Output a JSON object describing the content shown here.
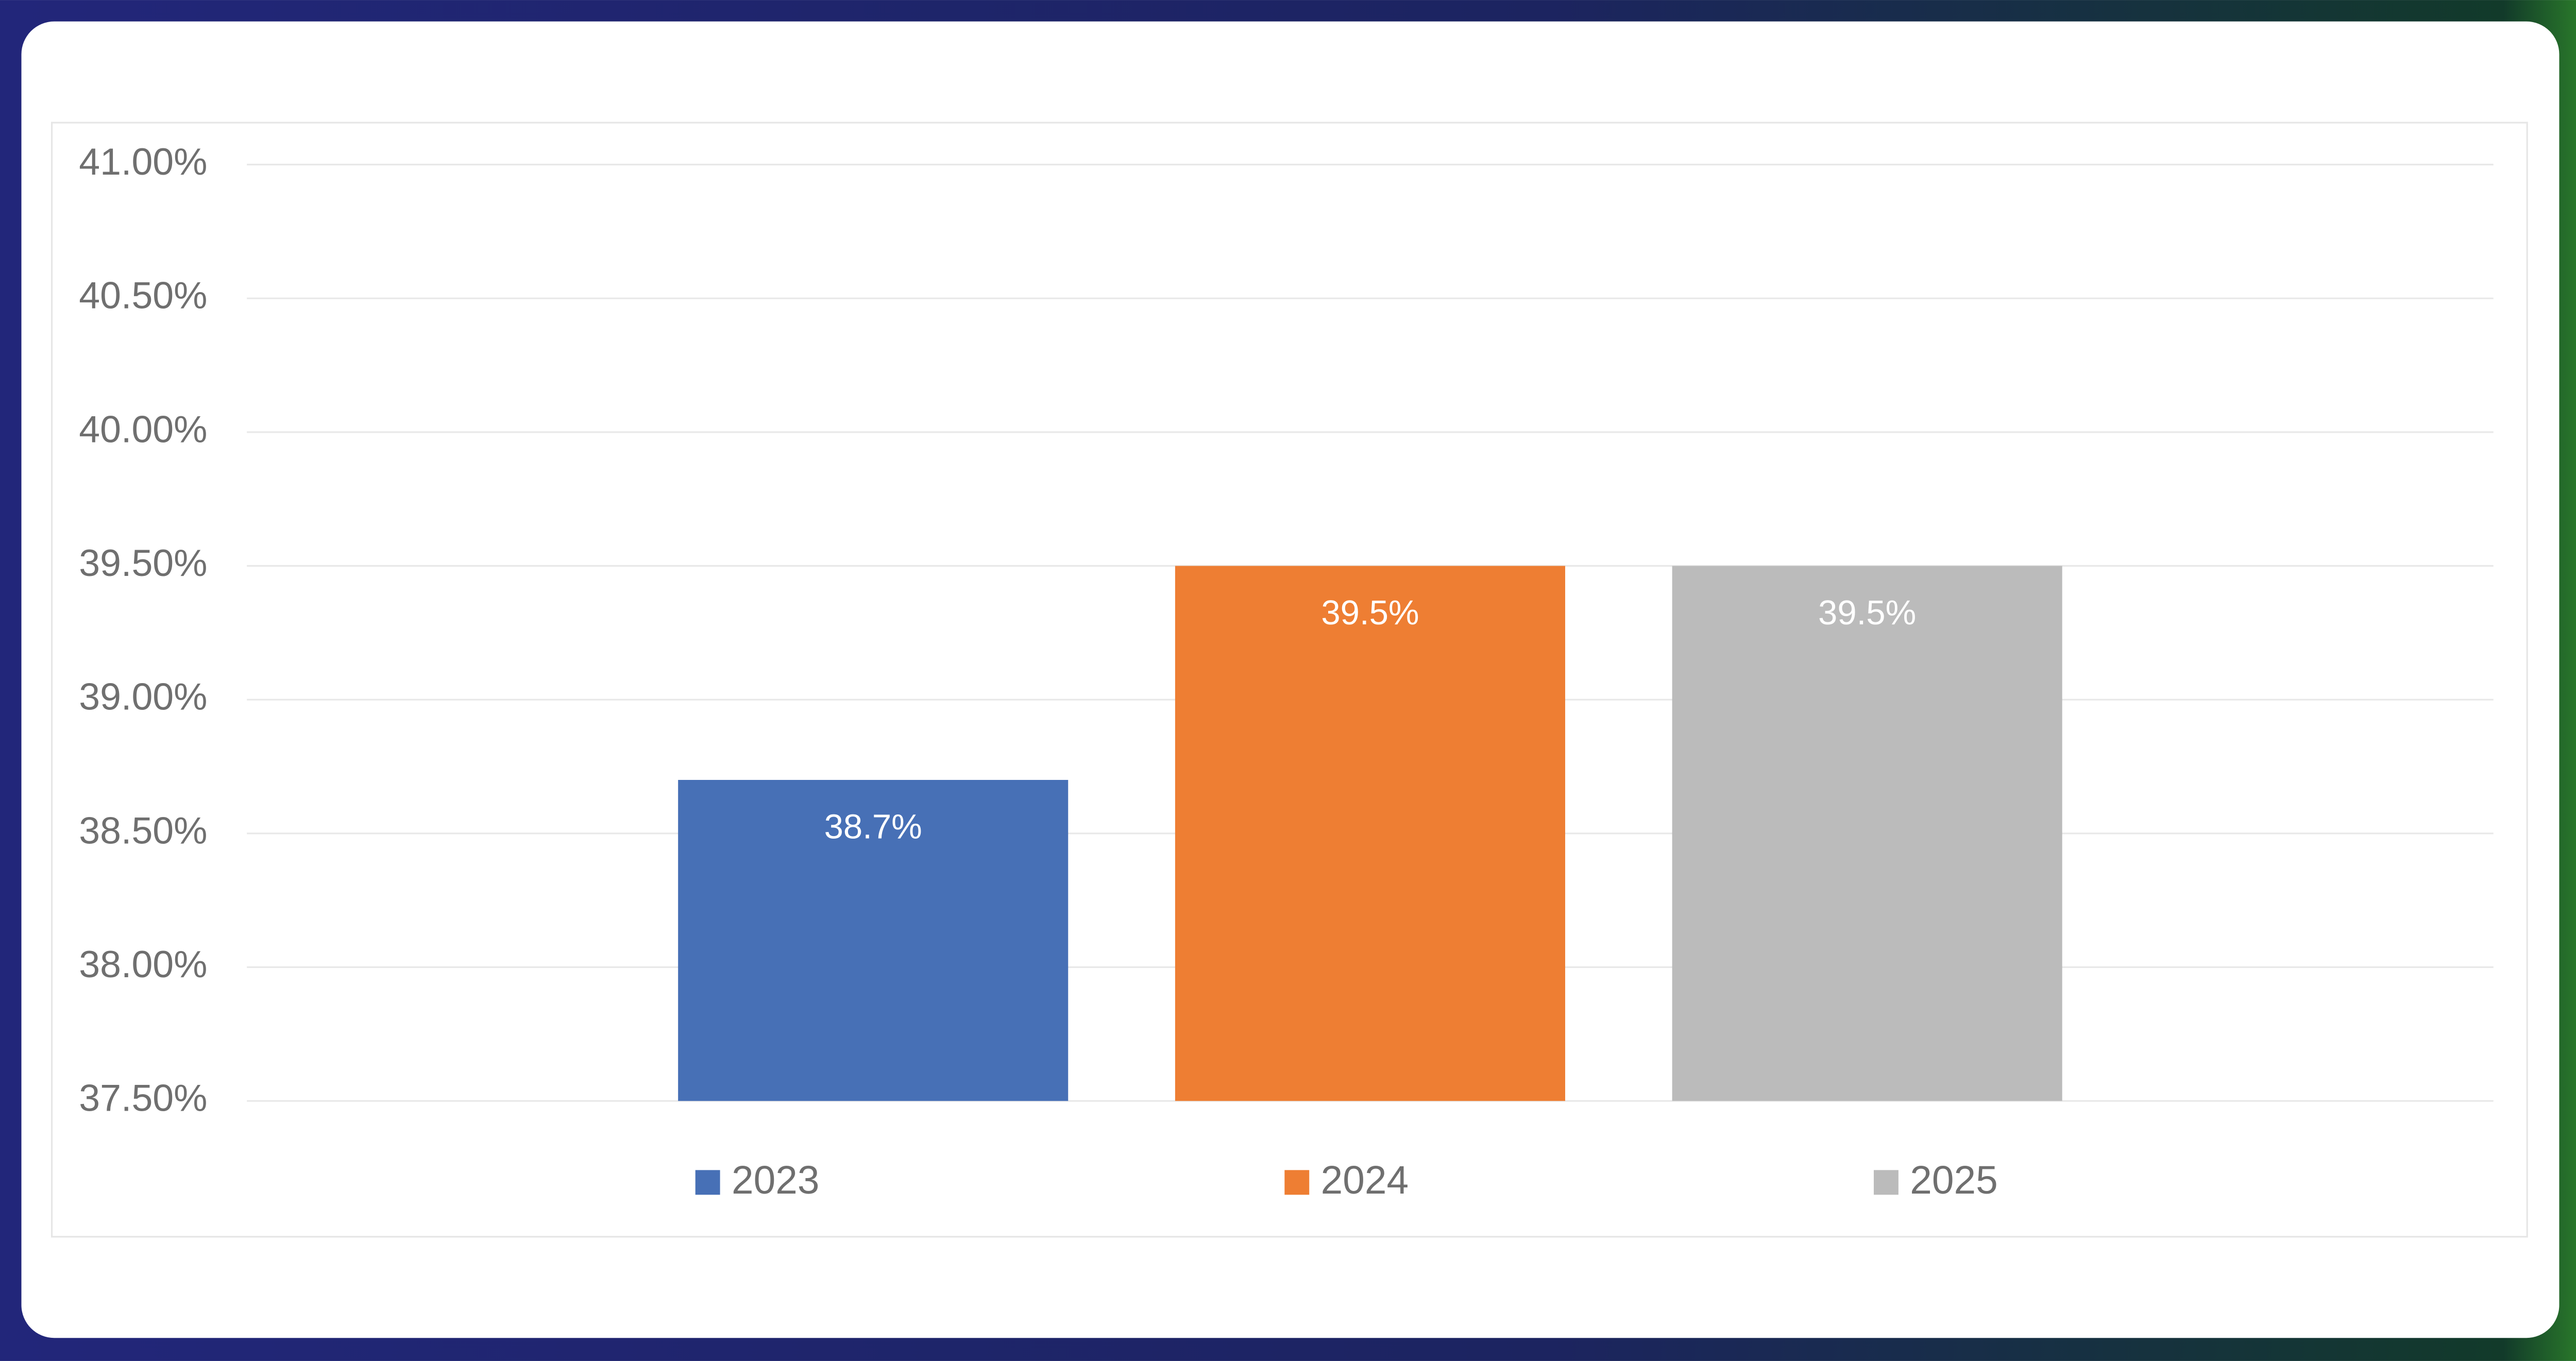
{
  "chart_data": {
    "type": "bar",
    "categories": [
      null
    ],
    "series": [
      {
        "name": "2023",
        "color": "#4770b6",
        "values": [
          38.7
        ],
        "value_labels": [
          "38.7%"
        ]
      },
      {
        "name": "2024",
        "color": "#ee7e33",
        "values": [
          39.5
        ],
        "value_labels": [
          "39.5%"
        ]
      },
      {
        "name": "2025",
        "color": "#bbbbbb",
        "values": [
          39.5
        ],
        "value_labels": [
          "39.5%"
        ]
      }
    ],
    "ylim": [
      37.5,
      41
    ],
    "yticks": [
      {
        "value": 37.5,
        "label": "37.50%"
      },
      {
        "value": 38,
        "label": "38.00%"
      },
      {
        "value": 38.5,
        "label": "38.50%"
      },
      {
        "value": 39,
        "label": "39.00%"
      },
      {
        "value": 39.5,
        "label": "39.50%"
      },
      {
        "value": 40,
        "label": "40.00%"
      },
      {
        "value": 40.5,
        "label": "40.50%"
      },
      {
        "value": 41,
        "label": "41.00%"
      }
    ],
    "grid": true,
    "legend": "bottom"
  }
}
